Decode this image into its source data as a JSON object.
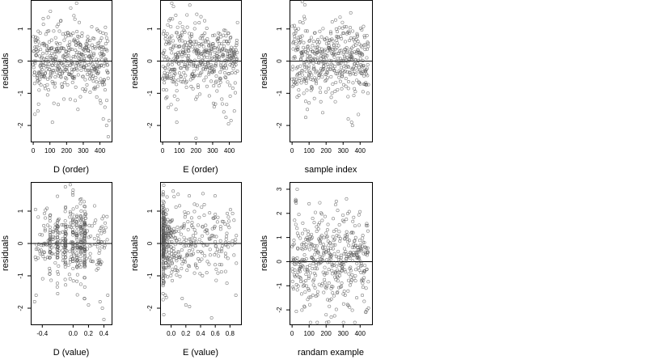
{
  "chart_data": [
    {
      "type": "scatter",
      "title": "",
      "xlabel": "D (order)",
      "ylabel": "residuals",
      "xlim": [
        -15,
        470
      ],
      "ylim": [
        -2.5,
        1.9
      ],
      "xticks": [
        0,
        100,
        200,
        300,
        400
      ],
      "yticks": [
        -2,
        -1,
        0,
        1
      ],
      "xtick_labels": [
        "0",
        "100",
        "200",
        "300",
        "400"
      ],
      "ytick_labels": [
        "-2",
        "-1",
        "0",
        "1"
      ],
      "hline": 0,
      "n_points": 450,
      "x_pattern": "index",
      "y_mean": 0.05,
      "y_sd": 0.55,
      "seed": 11,
      "points": [
        [
          10,
          -1.65
        ],
        [
          28,
          -1.55
        ],
        [
          115,
          -1.9
        ],
        [
          150,
          -1.35
        ],
        [
          260,
          1.8
        ],
        [
          225,
          1.65
        ],
        [
          420,
          -1.8
        ],
        [
          440,
          -2.0
        ],
        [
          450,
          -2.35
        ],
        [
          455,
          -1.85
        ]
      ]
    },
    {
      "type": "scatter",
      "title": "",
      "xlabel": "E (order)",
      "ylabel": "residuals",
      "xlim": [
        -15,
        470
      ],
      "ylim": [
        -2.5,
        1.9
      ],
      "xticks": [
        0,
        100,
        200,
        300,
        400
      ],
      "yticks": [
        -2,
        -1,
        0,
        1
      ],
      "xtick_labels": [
        "0",
        "100",
        "200",
        "300",
        "400"
      ],
      "ytick_labels": [
        "-2",
        "-1",
        "0",
        "1"
      ],
      "hline": 0,
      "n_points": 450,
      "x_pattern": "index",
      "y_mean": 0.05,
      "y_sd": 0.55,
      "seed": 23,
      "points": [
        [
          55,
          1.8
        ],
        [
          65,
          1.7
        ],
        [
          80,
          -1.5
        ],
        [
          85,
          -1.9
        ],
        [
          90,
          -1.2
        ],
        [
          200,
          -2.4
        ],
        [
          380,
          -1.75
        ],
        [
          395,
          -1.95
        ],
        [
          410,
          -1.85
        ],
        [
          430,
          -1.55
        ]
      ]
    },
    {
      "type": "scatter",
      "title": "",
      "xlabel": "sample index",
      "ylabel": "residuals",
      "xlim": [
        -15,
        470
      ],
      "ylim": [
        -2.5,
        1.9
      ],
      "xticks": [
        0,
        100,
        200,
        300,
        400
      ],
      "yticks": [
        -2,
        -1,
        0,
        1
      ],
      "xtick_labels": [
        "0",
        "100",
        "200",
        "300",
        "400"
      ],
      "ytick_labels": [
        "-2",
        "-1",
        "0",
        "1"
      ],
      "hline": 0,
      "n_points": 450,
      "x_pattern": "index",
      "y_mean": 0.05,
      "y_sd": 0.55,
      "seed": 37,
      "points": [
        [
          60,
          1.85
        ],
        [
          75,
          1.75
        ],
        [
          80,
          -1.75
        ],
        [
          90,
          -1.5
        ],
        [
          100,
          -1.3
        ],
        [
          180,
          -1.6
        ],
        [
          330,
          -1.8
        ],
        [
          350,
          -1.9
        ],
        [
          355,
          -2.0
        ],
        [
          345,
          1.5
        ]
      ]
    },
    {
      "type": "scatter",
      "title": "",
      "xlabel": "D (value)",
      "ylabel": "residuals",
      "xlim": [
        -0.55,
        0.5
      ],
      "ylim": [
        -2.5,
        1.9
      ],
      "xticks": [
        -0.4,
        0.0,
        0.2,
        0.4
      ],
      "yticks": [
        -2,
        -1,
        0,
        1
      ],
      "xtick_labels": [
        "-0.4",
        "0.0",
        "0.2",
        "0.4"
      ],
      "ytick_labels": [
        "-2",
        "-1",
        "0",
        "1"
      ],
      "hline": 0,
      "n_points": 450,
      "x_pattern": "columns",
      "x_columns": [
        -0.3,
        -0.2,
        -0.1,
        0.0,
        0.05,
        0.1,
        0.15
      ],
      "y_mean": 0.05,
      "y_sd": 0.55,
      "seed": 51,
      "points": [
        [
          -0.5,
          -1.8
        ],
        [
          -0.48,
          -1.6
        ],
        [
          -0.1,
          1.75
        ],
        [
          0.0,
          1.65
        ],
        [
          0.35,
          -1.8
        ],
        [
          0.38,
          -2.0
        ],
        [
          0.4,
          -2.35
        ],
        [
          -0.2,
          -1.55
        ],
        [
          0.2,
          -1.9
        ],
        [
          0.45,
          -1.6
        ]
      ]
    },
    {
      "type": "scatter",
      "title": "",
      "xlabel": "E (value)",
      "ylabel": "residuals",
      "xlim": [
        -0.15,
        0.95
      ],
      "ylim": [
        -2.5,
        1.9
      ],
      "xticks": [
        0.0,
        0.2,
        0.4,
        0.6,
        0.8
      ],
      "yticks": [
        -2,
        -1,
        0,
        1
      ],
      "xtick_labels": [
        "0.0",
        "0.2",
        "0.4",
        "0.6",
        "0.8"
      ],
      "ytick_labels": [
        "-2",
        "-1",
        "0",
        "1"
      ],
      "hline": 0,
      "n_points": 450,
      "x_pattern": "skewed",
      "y_mean": 0.05,
      "y_sd": 0.55,
      "seed": 67,
      "points": [
        [
          -0.1,
          1.8
        ],
        [
          -0.1,
          -2.2
        ],
        [
          -0.08,
          -1.6
        ],
        [
          0.15,
          -1.7
        ],
        [
          0.2,
          -1.9
        ],
        [
          0.25,
          -1.95
        ],
        [
          0.55,
          -2.3
        ],
        [
          0.88,
          -1.6
        ],
        [
          0.45,
          1.2
        ],
        [
          0.6,
          0.9
        ]
      ]
    },
    {
      "type": "scatter",
      "title": "",
      "xlabel": "randam example",
      "ylabel": "residuals",
      "xlim": [
        -15,
        470
      ],
      "ylim": [
        -2.6,
        3.3
      ],
      "xticks": [
        0,
        100,
        200,
        300,
        400
      ],
      "yticks": [
        -2,
        -1,
        0,
        1,
        2,
        3
      ],
      "xtick_labels": [
        "0",
        "100",
        "200",
        "300",
        "400"
      ],
      "ytick_labels": [
        "-2",
        "-1",
        "0",
        "1",
        "2",
        "3"
      ],
      "hline": 0,
      "n_points": 450,
      "x_pattern": "index",
      "y_mean": 0.05,
      "y_sd": 1.0,
      "seed": 83,
      "points": [
        [
          30,
          3.0
        ],
        [
          320,
          2.6
        ],
        [
          200,
          -2.2
        ],
        [
          215,
          -2.5
        ],
        [
          230,
          -2.3
        ],
        [
          440,
          -2.0
        ],
        [
          100,
          2.4
        ],
        [
          260,
          2.5
        ]
      ]
    }
  ]
}
